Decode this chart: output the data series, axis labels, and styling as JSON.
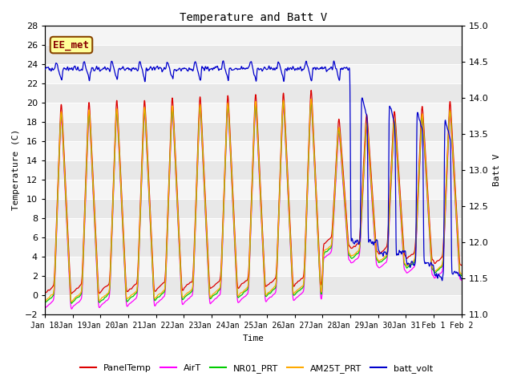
{
  "title": "Temperature and Batt V",
  "xlabel": "Time",
  "ylabel_left": "Temperature (C)",
  "ylabel_right": "Batt V",
  "ylim_left": [
    -2,
    28
  ],
  "ylim_right": [
    11.0,
    15.0
  ],
  "yticks_left": [
    -2,
    0,
    2,
    4,
    6,
    8,
    10,
    12,
    14,
    16,
    18,
    20,
    22,
    24,
    26,
    28
  ],
  "yticks_right": [
    11.0,
    11.5,
    12.0,
    12.5,
    13.0,
    13.5,
    14.0,
    14.5,
    15.0
  ],
  "fig_bg_color": "#ffffff",
  "plot_bg_color": "#e8e8e8",
  "stripe_color1": "#e8e8e8",
  "stripe_color2": "#f5f5f5",
  "label_box_text": "EE_met",
  "label_box_color": "#880000",
  "label_box_bg": "#ffff99",
  "colors": {
    "PanelTemp": "#dd0000",
    "AirT": "#ff00ff",
    "NR01_PRT": "#00cc00",
    "AM25T_PRT": "#ffaa00",
    "batt_volt": "#0000cc"
  },
  "legend_entries": [
    "PanelTemp",
    "AirT",
    "NR01_PRT",
    "AM25T_PRT",
    "batt_volt"
  ],
  "day_labels": [
    "Jan 18",
    "Jan 19",
    "Jan 20",
    "Jan 21",
    "Jan 22",
    "Jan 23",
    "Jan 24",
    "Jan 25",
    "Jan 26",
    "Jan 27",
    "Jan 28",
    "Jan 29",
    "Jan 30",
    "Jan 31",
    "Feb 1",
    "Feb 2"
  ],
  "n_days": 15,
  "points_per_day": 144
}
